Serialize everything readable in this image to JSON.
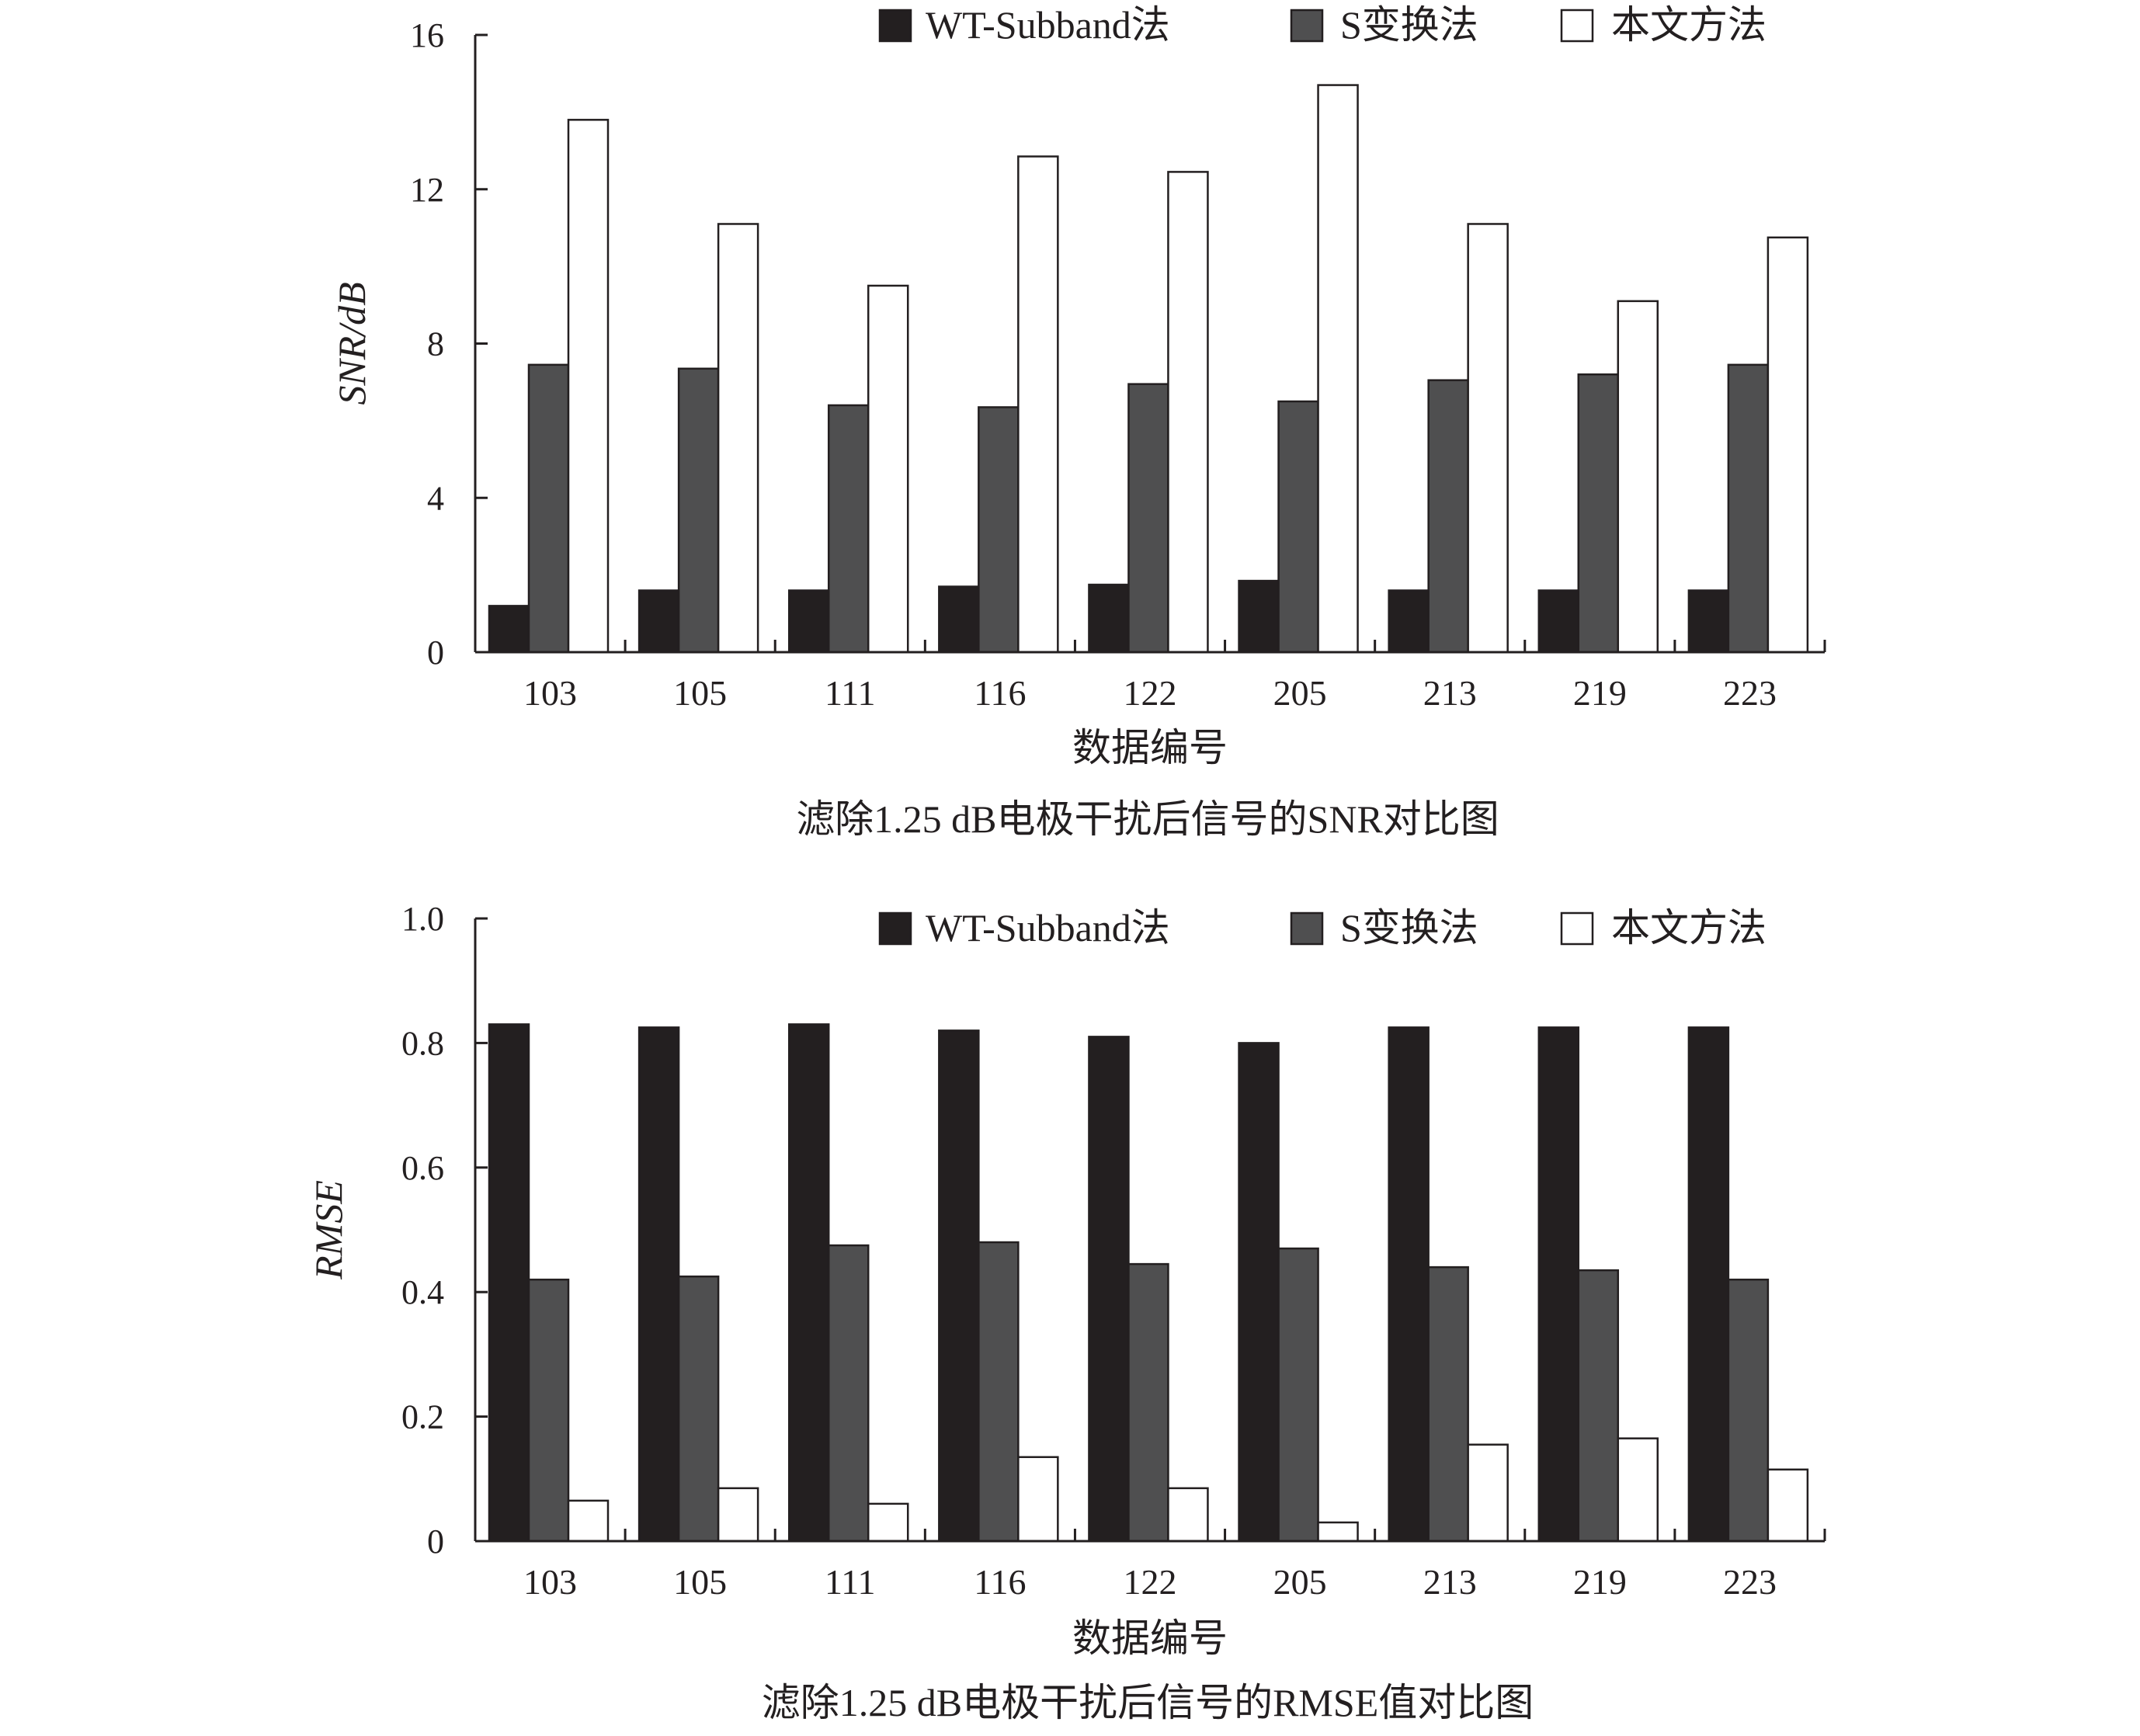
{
  "chart_data": [
    {
      "type": "bar",
      "title": "滤除1.25 dB电极干扰后信号的SNR对比图",
      "xlabel": "数据编号",
      "ylabel": "SNR/dB",
      "ylim": [
        0,
        16
      ],
      "yticks": [
        "0",
        "4",
        "8",
        "12",
        "16"
      ],
      "grid": false,
      "legend": "top-right",
      "categories": [
        "103",
        "105",
        "111",
        "116",
        "122",
        "205",
        "213",
        "219",
        "223"
      ],
      "series": [
        {
          "name": "WT-Subband法",
          "color": "#231f20",
          "values": [
            1.2,
            1.6,
            1.6,
            1.7,
            1.75,
            1.85,
            1.6,
            1.6,
            1.6
          ]
        },
        {
          "name": "S变换法",
          "color": "#4f4f50",
          "values": [
            7.45,
            7.35,
            6.4,
            6.35,
            6.95,
            6.5,
            7.05,
            7.2,
            7.45
          ]
        },
        {
          "name": "本文方法",
          "color": "#ffffff",
          "values": [
            13.8,
            11.1,
            9.5,
            12.85,
            12.45,
            14.7,
            11.1,
            9.1,
            10.75
          ]
        }
      ]
    },
    {
      "type": "bar",
      "title": "滤除1.25 dB电极干扰后信号的RMSE值对比图",
      "xlabel": "数据编号",
      "ylabel": "RMSE",
      "ylim": [
        0,
        1.0
      ],
      "yticks": [
        "0",
        "0.2",
        "0.4",
        "0.6",
        "0.8",
        "1.0"
      ],
      "grid": false,
      "legend": "top-right",
      "categories": [
        "103",
        "105",
        "111",
        "116",
        "122",
        "205",
        "213",
        "219",
        "223"
      ],
      "series": [
        {
          "name": "WT-Subband法",
          "color": "#231f20",
          "values": [
            0.83,
            0.825,
            0.83,
            0.82,
            0.81,
            0.8,
            0.825,
            0.825,
            0.825
          ]
        },
        {
          "name": "S变换法",
          "color": "#4f4f50",
          "values": [
            0.42,
            0.425,
            0.475,
            0.48,
            0.445,
            0.47,
            0.44,
            0.435,
            0.42
          ]
        },
        {
          "name": "本文方法",
          "color": "#ffffff",
          "values": [
            0.065,
            0.085,
            0.06,
            0.135,
            0.085,
            0.03,
            0.155,
            0.165,
            0.115
          ]
        }
      ]
    }
  ]
}
